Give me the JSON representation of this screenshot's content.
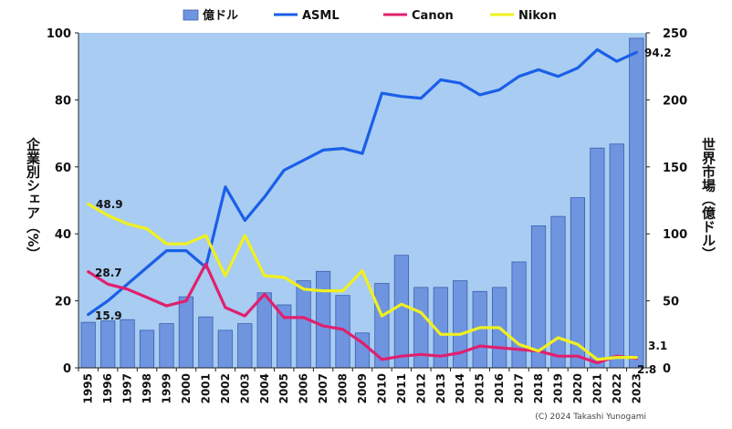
{
  "chart_data": {
    "type": "bar",
    "categories": [
      "1995",
      "1996",
      "1997",
      "1998",
      "1999",
      "2000",
      "2001",
      "2002",
      "2003",
      "2004",
      "2005",
      "2006",
      "2007",
      "2008",
      "2009",
      "2010",
      "2011",
      "2012",
      "2013",
      "2014",
      "2015",
      "2016",
      "2017",
      "2018",
      "2019",
      "2020",
      "2021",
      "2022",
      "2023"
    ],
    "yleft": {
      "label": "企業別シェア（%）",
      "lim": [
        0,
        100
      ],
      "ticks": [
        "0",
        "20",
        "40",
        "60",
        "80",
        "100"
      ]
    },
    "yright": {
      "label": "世界市場（億ドル）",
      "lim": [
        0,
        250
      ],
      "ticks": [
        "0",
        "50",
        "100",
        "150",
        "200",
        "250"
      ]
    },
    "legend": {
      "position": "top"
    },
    "grid": false,
    "series": [
      {
        "name": "億ドル",
        "kind": "bar",
        "axis": "right",
        "color": "#6f95e0",
        "values": [
          34,
          35,
          36,
          28,
          33,
          53,
          38,
          28,
          33,
          56,
          47,
          65,
          72,
          54,
          26,
          63,
          84,
          60,
          60,
          65,
          57,
          60,
          79,
          106,
          113,
          127,
          164,
          167,
          246
        ]
      },
      {
        "name": "ASML",
        "kind": "line",
        "axis": "left",
        "color": "#1a5fe8",
        "values": [
          15.9,
          20,
          25,
          30,
          35,
          35,
          30,
          54,
          44,
          51,
          59,
          62,
          65,
          65.5,
          64,
          82,
          81,
          80.5,
          86,
          85,
          81.5,
          83,
          87,
          89,
          87,
          89.5,
          95,
          91.5,
          94.2
        ]
      },
      {
        "name": "Canon",
        "kind": "line",
        "axis": "left",
        "color": "#e0206e",
        "values": [
          28.7,
          25,
          23.5,
          21,
          18.5,
          20,
          31,
          18,
          15.5,
          22,
          15,
          15,
          12.5,
          11.5,
          7.5,
          2.5,
          3.5,
          4,
          3.5,
          4.5,
          6.5,
          6,
          5.5,
          5,
          3.5,
          3.5,
          1.5,
          3.5,
          2.8
        ]
      },
      {
        "name": "Nikon",
        "kind": "line",
        "axis": "left",
        "color": "#f0f01e",
        "values": [
          48.9,
          45.5,
          43,
          41.5,
          37,
          37,
          39.5,
          27.5,
          39.5,
          27.5,
          27,
          23.5,
          23,
          23,
          29,
          15.5,
          19,
          16.5,
          10,
          10,
          12,
          12,
          7,
          5,
          9,
          7,
          2.5,
          3.1,
          3.1
        ]
      }
    ],
    "annotations": [
      "48.9",
      "28.7",
      "15.9",
      "94.2",
      "3.1",
      "2.8"
    ]
  },
  "credit": "(C) 2024 Takashi Yunogami"
}
